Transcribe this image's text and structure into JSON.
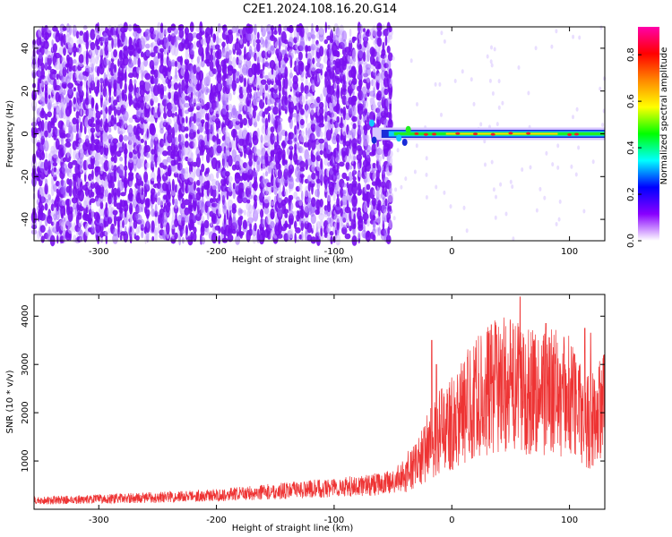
{
  "title": "C2E1.2024.108.16.20.G14",
  "chart_data": [
    {
      "type": "heatmap",
      "xlabel": "Height of straight line (km)",
      "ylabel": "Frequency (Hz)",
      "xlim": [
        -355,
        130
      ],
      "ylim": [
        -50,
        50
      ],
      "xticks": [
        -300,
        -200,
        -100,
        0,
        100
      ],
      "yticks": [
        -40,
        -20,
        0,
        20,
        40
      ],
      "noise_region_x": [
        -355,
        -50
      ],
      "signal_line": {
        "frequency": 0,
        "x_range": [
          -75,
          130
        ]
      },
      "colorbar": {
        "label": "Normalized spectral amplitude",
        "range": [
          0.0,
          0.92
        ],
        "ticks": [
          0.0,
          0.2,
          0.4,
          0.6,
          0.8
        ],
        "colors": [
          "#ffffff",
          "#8800ff",
          "#0000ff",
          "#00ffff",
          "#00ff00",
          "#ffff00",
          "#ff8800",
          "#ff0000",
          "#ff00aa"
        ]
      }
    },
    {
      "type": "line",
      "xlabel": "Height of straight line (km)",
      "ylabel": "SNR (10 * v/v)",
      "xlim": [
        -355,
        130
      ],
      "ylim": [
        0,
        4450
      ],
      "xticks": [
        -300,
        -200,
        -100,
        0,
        100
      ],
      "yticks": [
        1000,
        2000,
        3000,
        4000
      ],
      "color": "#ee3333",
      "envelope": {
        "x": [
          -355,
          -300,
          -250,
          -200,
          -150,
          -100,
          -70,
          -50,
          -30,
          -20,
          -10,
          0,
          20,
          40,
          60,
          80,
          100,
          115,
          130
        ],
        "y": [
          180,
          210,
          250,
          290,
          370,
          450,
          500,
          560,
          900,
          1300,
          1600,
          1800,
          2300,
          2600,
          2500,
          2450,
          2350,
          1800,
          2100
        ]
      },
      "peaks": [
        {
          "x": -17,
          "y": 3500
        },
        {
          "x": -13,
          "y": 3000
        },
        {
          "x": 58,
          "y": 4400
        },
        {
          "x": 80,
          "y": 3850
        },
        {
          "x": 113,
          "y": 3750
        },
        {
          "x": 118,
          "y": 3650
        }
      ]
    }
  ]
}
